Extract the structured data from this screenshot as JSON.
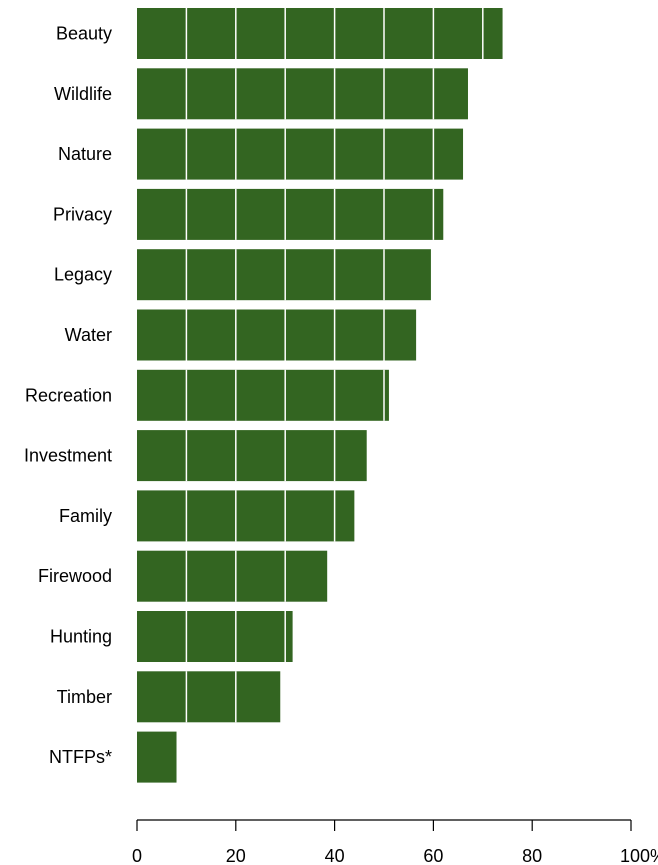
{
  "chart_data": {
    "type": "bar",
    "orientation": "horizontal",
    "categories": [
      "Beauty",
      "Wildlife",
      "Nature",
      "Privacy",
      "Legacy",
      "Water",
      "Recreation",
      "Investment",
      "Family",
      "Firewood",
      "Hunting",
      "Timber",
      "NTFPs*"
    ],
    "values": [
      74,
      67,
      66,
      62,
      59.5,
      56.5,
      51,
      46.5,
      44,
      38.5,
      31.5,
      29,
      8
    ],
    "xlim": [
      0,
      100
    ],
    "x_ticks": [
      0,
      20,
      40,
      60,
      80,
      100
    ],
    "x_tick_labels": [
      "0",
      "20",
      "40",
      "60",
      "80",
      "100%"
    ],
    "grid": "white vertical lines every 10 drawn over bars",
    "grid_step": 10,
    "bar_color": "#336521",
    "title": "",
    "xlabel": "",
    "ylabel": ""
  }
}
